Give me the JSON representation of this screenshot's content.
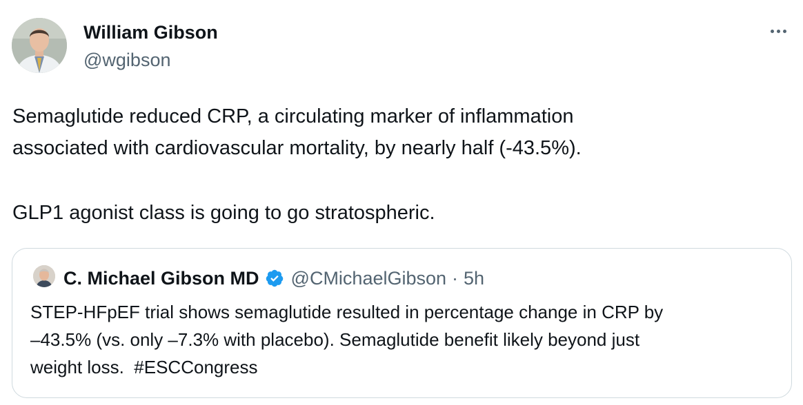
{
  "tweet": {
    "author": {
      "name": "William Gibson",
      "handle": "@wgibson",
      "avatar_icon": "profile-photo"
    },
    "more_icon": "more-options-icon",
    "text_lines": [
      "Semaglutide reduced CRP, a circulating marker of inflammation",
      "associated with cardiovascular mortality, by nearly half (-43.5%).",
      "GLP1 agonist class is going to go stratospheric."
    ],
    "quoted": {
      "author_name": "C. Michael Gibson MD",
      "verified_icon": "verified-badge-icon",
      "verified_color": "#1d9bf0",
      "handle": "@CMichaelGibson",
      "separator": "·",
      "time": "5h",
      "text_lines": [
        "STEP-HFpEF trial shows semaglutide resulted in percentage change in CRP by",
        "–43.5% (vs. only –7.3% with placebo). Semaglutide benefit likely beyond just",
        "weight loss.  #ESCCongress"
      ]
    }
  }
}
